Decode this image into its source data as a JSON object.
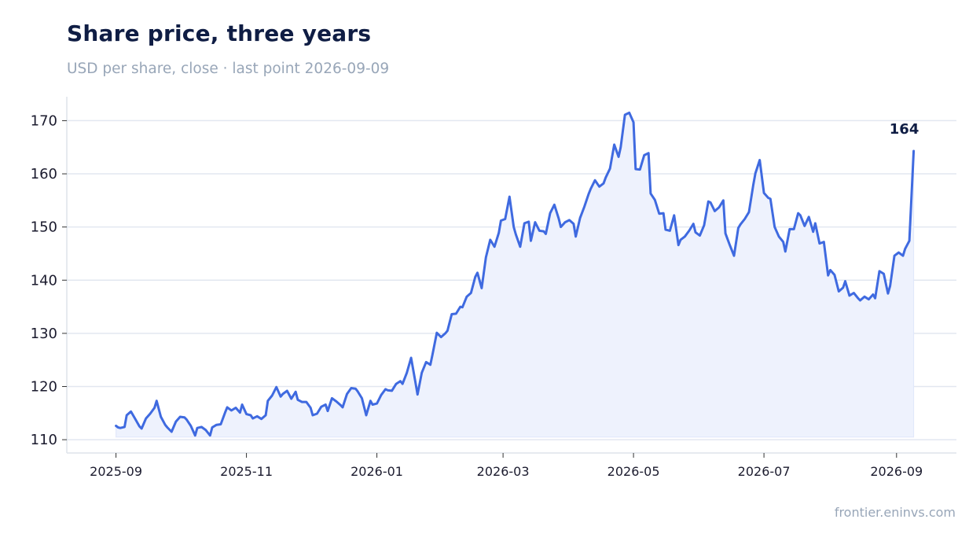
{
  "header": {
    "title": "Share price, three years",
    "subtitle": "USD per share, close · last point 2026-09-09"
  },
  "footer": {
    "source": "frontier.eninvs.com"
  },
  "colors": {
    "line": "#3f6ae0",
    "fill": "#eef2fd",
    "grid": "#e2e7f0",
    "axis": "#dde3ea"
  },
  "chart_data": {
    "type": "area",
    "title": "Share price, three years",
    "subtitle": "USD per share, close · last point 2026-09-09",
    "xlabel": "",
    "ylabel": "",
    "x_range": [
      "2025-08-09",
      "2026-09-29"
    ],
    "ylim": [
      107.5,
      174.5
    ],
    "y_ticks": [
      110,
      120,
      130,
      140,
      150,
      160,
      170
    ],
    "x_ticks": [
      "2025-09",
      "2025-11",
      "2026-01",
      "2026-03",
      "2026-05",
      "2026-07",
      "2026-09"
    ],
    "grid": true,
    "end_label": "164",
    "series": [
      {
        "points": [
          [
            "2025-09-01",
            112.6
          ],
          [
            "2025-09-02",
            112.3
          ],
          [
            "2025-09-03",
            112.2
          ],
          [
            "2025-09-05",
            112.4
          ],
          [
            "2025-09-06",
            114.6
          ],
          [
            "2025-09-08",
            115.3
          ],
          [
            "2025-09-10",
            113.9
          ],
          [
            "2025-09-12",
            112.5
          ],
          [
            "2025-09-13",
            112.1
          ],
          [
            "2025-09-15",
            114.0
          ],
          [
            "2025-09-17",
            114.9
          ],
          [
            "2025-09-19",
            116.0
          ],
          [
            "2025-09-20",
            117.3
          ],
          [
            "2025-09-22",
            114.3
          ],
          [
            "2025-09-24",
            112.8
          ],
          [
            "2025-09-25",
            112.3
          ],
          [
            "2025-09-27",
            111.5
          ],
          [
            "2025-09-29",
            113.4
          ],
          [
            "2025-10-01",
            114.3
          ],
          [
            "2025-10-03",
            114.2
          ],
          [
            "2025-10-04",
            113.8
          ],
          [
            "2025-10-06",
            112.6
          ],
          [
            "2025-10-08",
            110.8
          ],
          [
            "2025-10-09",
            112.2
          ],
          [
            "2025-10-11",
            112.4
          ],
          [
            "2025-10-13",
            111.8
          ],
          [
            "2025-10-15",
            110.8
          ],
          [
            "2025-10-16",
            112.3
          ],
          [
            "2025-10-18",
            112.8
          ],
          [
            "2025-10-20",
            112.9
          ],
          [
            "2025-10-22",
            115.1
          ],
          [
            "2025-10-23",
            116.1
          ],
          [
            "2025-10-25",
            115.5
          ],
          [
            "2025-10-27",
            116.0
          ],
          [
            "2025-10-29",
            115.1
          ],
          [
            "2025-10-30",
            116.6
          ],
          [
            "2025-11-01",
            114.8
          ],
          [
            "2025-11-03",
            114.6
          ],
          [
            "2025-11-04",
            114.0
          ],
          [
            "2025-11-06",
            114.4
          ],
          [
            "2025-11-08",
            113.9
          ],
          [
            "2025-11-10",
            114.6
          ],
          [
            "2025-11-11",
            117.3
          ],
          [
            "2025-11-13",
            118.3
          ],
          [
            "2025-11-15",
            119.9
          ],
          [
            "2025-11-17",
            118.1
          ],
          [
            "2025-11-18",
            118.6
          ],
          [
            "2025-11-20",
            119.2
          ],
          [
            "2025-11-22",
            117.7
          ],
          [
            "2025-11-24",
            119.0
          ],
          [
            "2025-11-25",
            117.5
          ],
          [
            "2025-11-27",
            117.1
          ],
          [
            "2025-11-29",
            117.1
          ],
          [
            "2025-12-01",
            116.0
          ],
          [
            "2025-12-02",
            114.6
          ],
          [
            "2025-12-04",
            114.9
          ],
          [
            "2025-12-06",
            116.2
          ],
          [
            "2025-12-08",
            116.6
          ],
          [
            "2025-12-09",
            115.4
          ],
          [
            "2025-12-11",
            117.8
          ],
          [
            "2025-12-13",
            117.2
          ],
          [
            "2025-12-15",
            116.5
          ],
          [
            "2025-12-16",
            116.1
          ],
          [
            "2025-12-18",
            118.6
          ],
          [
            "2025-12-20",
            119.7
          ],
          [
            "2025-12-22",
            119.6
          ],
          [
            "2025-12-23",
            119.1
          ],
          [
            "2025-12-25",
            117.8
          ],
          [
            "2025-12-27",
            114.6
          ],
          [
            "2025-12-29",
            117.3
          ],
          [
            "2025-12-30",
            116.6
          ],
          [
            "2026-01-01",
            116.8
          ],
          [
            "2026-01-03",
            118.4
          ],
          [
            "2026-01-05",
            119.5
          ],
          [
            "2026-01-06",
            119.3
          ],
          [
            "2026-01-08",
            119.2
          ],
          [
            "2026-01-10",
            120.5
          ],
          [
            "2026-01-12",
            121.0
          ],
          [
            "2026-01-13",
            120.5
          ],
          [
            "2026-01-15",
            122.6
          ],
          [
            "2026-01-17",
            125.4
          ],
          [
            "2026-01-19",
            120.9
          ],
          [
            "2026-01-20",
            118.5
          ],
          [
            "2026-01-22",
            122.6
          ],
          [
            "2026-01-24",
            124.6
          ],
          [
            "2026-01-26",
            124.1
          ],
          [
            "2026-01-27",
            126.0
          ],
          [
            "2026-01-29",
            130.1
          ],
          [
            "2026-01-31",
            129.3
          ],
          [
            "2026-02-02",
            130.0
          ],
          [
            "2026-02-03",
            130.5
          ],
          [
            "2026-02-05",
            133.6
          ],
          [
            "2026-02-07",
            133.7
          ],
          [
            "2026-02-09",
            135.0
          ],
          [
            "2026-02-10",
            134.9
          ],
          [
            "2026-02-12",
            136.9
          ],
          [
            "2026-02-14",
            137.6
          ],
          [
            "2026-02-16",
            140.6
          ],
          [
            "2026-02-17",
            141.4
          ],
          [
            "2026-02-19",
            138.5
          ],
          [
            "2026-02-21",
            144.3
          ],
          [
            "2026-02-23",
            147.6
          ],
          [
            "2026-02-25",
            146.3
          ],
          [
            "2026-02-27",
            148.9
          ],
          [
            "2026-02-28",
            151.2
          ],
          [
            "2026-03-02",
            151.5
          ],
          [
            "2026-03-04",
            155.7
          ],
          [
            "2026-03-06",
            150.0
          ],
          [
            "2026-03-07",
            148.6
          ],
          [
            "2026-03-09",
            146.3
          ],
          [
            "2026-03-11",
            150.7
          ],
          [
            "2026-03-13",
            151.0
          ],
          [
            "2026-03-14",
            147.4
          ],
          [
            "2026-03-16",
            150.9
          ],
          [
            "2026-03-18",
            149.3
          ],
          [
            "2026-03-20",
            149.2
          ],
          [
            "2026-03-21",
            148.7
          ],
          [
            "2026-03-23",
            152.6
          ],
          [
            "2026-03-25",
            154.2
          ],
          [
            "2026-03-27",
            151.6
          ],
          [
            "2026-03-28",
            150.0
          ],
          [
            "2026-03-30",
            150.9
          ],
          [
            "2026-04-01",
            151.3
          ],
          [
            "2026-04-03",
            150.6
          ],
          [
            "2026-04-04",
            148.2
          ],
          [
            "2026-04-06",
            151.7
          ],
          [
            "2026-04-08",
            153.8
          ],
          [
            "2026-04-10",
            156.2
          ],
          [
            "2026-04-11",
            157.2
          ],
          [
            "2026-04-13",
            158.8
          ],
          [
            "2026-04-15",
            157.6
          ],
          [
            "2026-04-17",
            158.2
          ],
          [
            "2026-04-18",
            159.3
          ],
          [
            "2026-04-20",
            161.0
          ],
          [
            "2026-04-22",
            165.5
          ],
          [
            "2026-04-24",
            163.2
          ],
          [
            "2026-04-25",
            165.0
          ],
          [
            "2026-04-27",
            171.1
          ],
          [
            "2026-04-29",
            171.5
          ],
          [
            "2026-05-01",
            169.7
          ],
          [
            "2026-05-02",
            160.9
          ],
          [
            "2026-05-04",
            160.8
          ],
          [
            "2026-05-06",
            163.5
          ],
          [
            "2026-05-08",
            163.9
          ],
          [
            "2026-05-09",
            156.3
          ],
          [
            "2026-05-11",
            155.1
          ],
          [
            "2026-05-13",
            152.5
          ],
          [
            "2026-05-15",
            152.6
          ],
          [
            "2026-05-16",
            149.5
          ],
          [
            "2026-05-18",
            149.3
          ],
          [
            "2026-05-20",
            152.2
          ],
          [
            "2026-05-22",
            146.6
          ],
          [
            "2026-05-23",
            147.6
          ],
          [
            "2026-05-25",
            148.2
          ],
          [
            "2026-05-27",
            149.3
          ],
          [
            "2026-05-29",
            150.6
          ],
          [
            "2026-05-30",
            149.0
          ],
          [
            "2026-06-01",
            148.4
          ],
          [
            "2026-06-03",
            150.3
          ],
          [
            "2026-06-05",
            154.8
          ],
          [
            "2026-06-06",
            154.6
          ],
          [
            "2026-06-08",
            153.0
          ],
          [
            "2026-06-10",
            153.7
          ],
          [
            "2026-06-12",
            155.0
          ],
          [
            "2026-06-13",
            148.8
          ],
          [
            "2026-06-15",
            146.6
          ],
          [
            "2026-06-17",
            144.6
          ],
          [
            "2026-06-19",
            149.8
          ],
          [
            "2026-06-20",
            150.5
          ],
          [
            "2026-06-22",
            151.5
          ],
          [
            "2026-06-24",
            152.8
          ],
          [
            "2026-06-26",
            157.9
          ],
          [
            "2026-06-27",
            160.1
          ],
          [
            "2026-06-29",
            162.6
          ],
          [
            "2026-07-01",
            156.4
          ],
          [
            "2026-07-03",
            155.5
          ],
          [
            "2026-07-04",
            155.3
          ],
          [
            "2026-07-06",
            150.0
          ],
          [
            "2026-07-08",
            148.2
          ],
          [
            "2026-07-10",
            147.2
          ],
          [
            "2026-07-11",
            145.4
          ],
          [
            "2026-07-13",
            149.6
          ],
          [
            "2026-07-15",
            149.6
          ],
          [
            "2026-07-17",
            152.6
          ],
          [
            "2026-07-18",
            152.2
          ],
          [
            "2026-07-20",
            150.2
          ],
          [
            "2026-07-22",
            151.9
          ],
          [
            "2026-07-24",
            149.1
          ],
          [
            "2026-07-25",
            150.7
          ],
          [
            "2026-07-27",
            146.9
          ],
          [
            "2026-07-29",
            147.2
          ],
          [
            "2026-07-31",
            140.9
          ],
          [
            "2026-08-01",
            141.9
          ],
          [
            "2026-08-03",
            141.0
          ],
          [
            "2026-08-05",
            137.9
          ],
          [
            "2026-08-07",
            138.6
          ],
          [
            "2026-08-08",
            139.8
          ],
          [
            "2026-08-10",
            137.1
          ],
          [
            "2026-08-12",
            137.6
          ],
          [
            "2026-08-14",
            136.6
          ],
          [
            "2026-08-15",
            136.2
          ],
          [
            "2026-08-17",
            136.9
          ],
          [
            "2026-08-19",
            136.4
          ],
          [
            "2026-08-21",
            137.3
          ],
          [
            "2026-08-22",
            136.6
          ],
          [
            "2026-08-24",
            141.7
          ],
          [
            "2026-08-26",
            141.2
          ],
          [
            "2026-08-28",
            137.5
          ],
          [
            "2026-08-29",
            138.9
          ],
          [
            "2026-08-31",
            144.6
          ],
          [
            "2026-09-02",
            145.2
          ],
          [
            "2026-09-04",
            144.6
          ],
          [
            "2026-09-05",
            145.9
          ],
          [
            "2026-09-07",
            147.4
          ],
          [
            "2026-09-09",
            164.3
          ]
        ]
      }
    ]
  }
}
